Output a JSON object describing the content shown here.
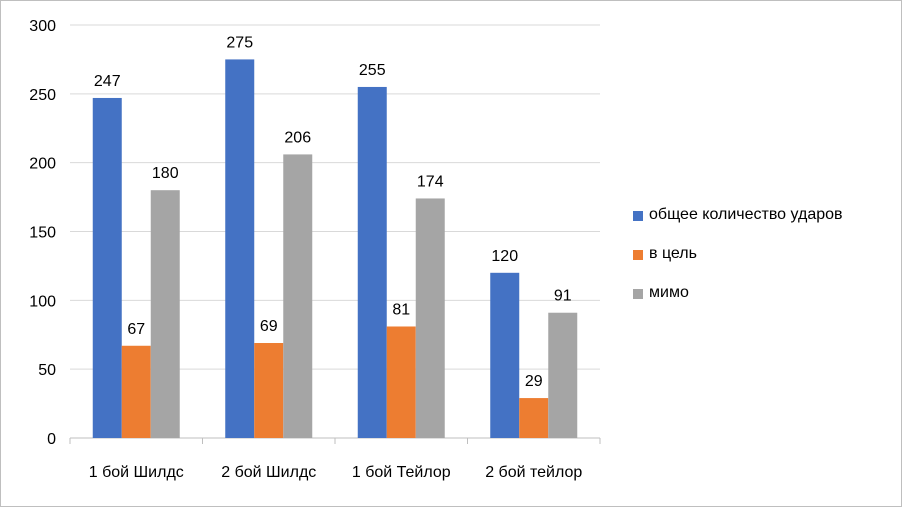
{
  "chart_data": {
    "type": "bar",
    "title": "",
    "xlabel": "",
    "ylabel": "",
    "categories": [
      "1 бой Шилдс",
      "2 бой Шилдс",
      "1 бой Тейлор",
      "2 бой тейлор"
    ],
    "series": [
      {
        "name": "общее количество ударов",
        "color": "#4472C4",
        "values": [
          247,
          275,
          255,
          120
        ]
      },
      {
        "name": "в цель",
        "color": "#ED7D31",
        "values": [
          67,
          69,
          81,
          29
        ]
      },
      {
        "name": "мимо",
        "color": "#A5A5A5",
        "values": [
          180,
          206,
          174,
          91
        ]
      }
    ],
    "ylim": [
      0,
      300
    ],
    "yticks": [
      "0",
      "50",
      "100",
      "150",
      "200",
      "250",
      "300"
    ],
    "grid": true,
    "legend": "right",
    "data_labels": true
  }
}
